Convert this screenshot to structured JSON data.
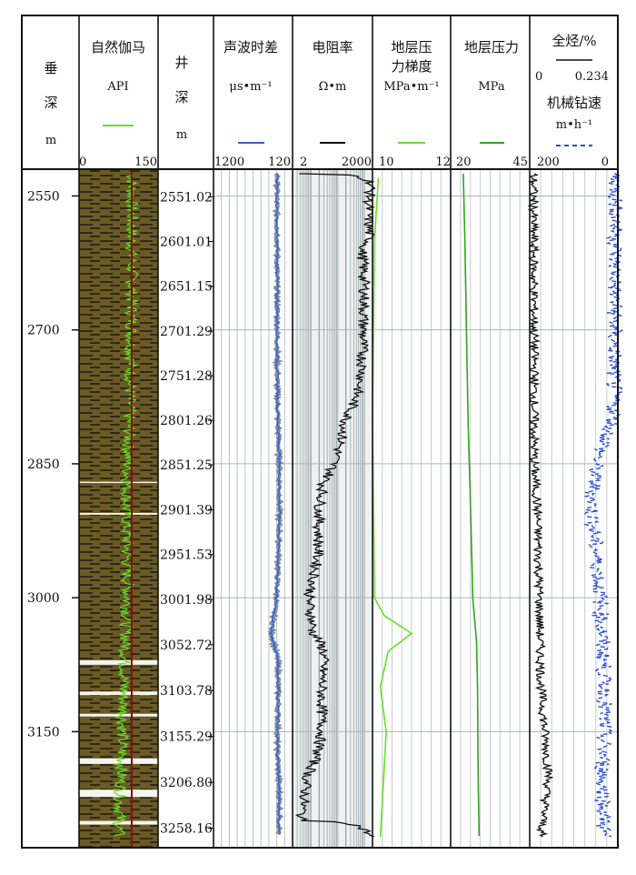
{
  "chart_data": {
    "type": "well-log",
    "tracks": [
      {
        "id": "vdepth",
        "title_lines": [
          "垂",
          "深"
        ],
        "unit": "m"
      },
      {
        "id": "gr",
        "title": "自然伽马",
        "unit": "API",
        "scale": [
          "0",
          "150"
        ],
        "range": [
          0,
          150
        ],
        "color": "#66e02a"
      },
      {
        "id": "mdepth",
        "title_lines": [
          "井",
          "深"
        ],
        "unit": "m"
      },
      {
        "id": "ac",
        "title": "声波时差",
        "unit": "μs•m⁻¹",
        "scale": [
          "1200",
          "120"
        ],
        "range": [
          1200,
          120
        ],
        "color": "#3b5bd6"
      },
      {
        "id": "rt",
        "title": "电阻率",
        "unit": "Ω•m",
        "scale": [
          "2",
          "2000"
        ],
        "range": [
          2,
          2000
        ],
        "log": true,
        "color": "#111111"
      },
      {
        "id": "pg",
        "title_lines": [
          "地层压",
          "力梯度"
        ],
        "unit": "MPa•m⁻¹",
        "scale": [
          "10",
          "12"
        ],
        "range": [
          10,
          12
        ],
        "color": "#66e02a"
      },
      {
        "id": "pf",
        "title": "地层压力",
        "unit": "MPa",
        "scale": [
          "20",
          "45"
        ],
        "range": [
          20,
          45
        ],
        "color": "#2fa31c"
      },
      {
        "id": "tg",
        "title": "全烃/%",
        "scale_inline": [
          "0",
          "0.234"
        ],
        "title2": "机械钻速",
        "unit2": "m•h⁻¹",
        "scale": [
          "200",
          "0"
        ],
        "color": "#111111",
        "color2": "#2a4fd8"
      }
    ],
    "depth_range": [
      2520,
      3280
    ],
    "vertical_depth_ticks": [
      2550,
      2700,
      2850,
      3000,
      3150
    ],
    "measured_depth_labels": [
      "2551.02",
      "2601.01",
      "2651.15",
      "2701.29",
      "2751.28",
      "2801.26",
      "2851.25",
      "2901.39",
      "2951.53",
      "3001.98",
      "3052.72",
      "3103.78",
      "3155.29",
      "3206.80",
      "3258.16"
    ],
    "series": {
      "ac_values": [
        [
          2525,
          330
        ],
        [
          2560,
          335
        ],
        [
          2600,
          330
        ],
        [
          2650,
          332
        ],
        [
          2700,
          328
        ],
        [
          2750,
          330
        ],
        [
          2800,
          320
        ],
        [
          2850,
          300
        ],
        [
          2900,
          300
        ],
        [
          2950,
          310
        ],
        [
          3000,
          340
        ],
        [
          3040,
          410
        ],
        [
          3070,
          320
        ],
        [
          3100,
          315
        ],
        [
          3140,
          320
        ],
        [
          3160,
          330
        ],
        [
          3200,
          310
        ],
        [
          3230,
          300
        ],
        [
          3265,
          305
        ]
      ],
      "rt_values": [
        [
          2525,
          2.5
        ],
        [
          2535,
          1800
        ],
        [
          2560,
          1400
        ],
        [
          2600,
          1500
        ],
        [
          2610,
          800
        ],
        [
          2650,
          1000
        ],
        [
          2700,
          900
        ],
        [
          2750,
          800
        ],
        [
          2780,
          400
        ],
        [
          2800,
          200
        ],
        [
          2840,
          90
        ],
        [
          2870,
          30
        ],
        [
          2900,
          20
        ],
        [
          2950,
          18
        ],
        [
          3000,
          8
        ],
        [
          3040,
          12
        ],
        [
          3060,
          30
        ],
        [
          3100,
          25
        ],
        [
          3150,
          25
        ],
        [
          3200,
          7
        ],
        [
          3250,
          4
        ],
        [
          3268,
          1800
        ]
      ],
      "pg_values": [
        [
          2530,
          10.15
        ],
        [
          2600,
          10.05
        ],
        [
          2800,
          10.0
        ],
        [
          3000,
          10.05
        ],
        [
          3020,
          10.3
        ],
        [
          3040,
          11.0
        ],
        [
          3060,
          10.4
        ],
        [
          3100,
          10.2
        ],
        [
          3150,
          10.35
        ],
        [
          3190,
          10.3
        ],
        [
          3268,
          10.2
        ]
      ],
      "pf_values": [
        [
          2525,
          24.0
        ],
        [
          2600,
          24.5
        ],
        [
          2700,
          25.0
        ],
        [
          2800,
          25.5
        ],
        [
          2900,
          26.3
        ],
        [
          3000,
          27.0
        ],
        [
          3050,
          28.2
        ],
        [
          3100,
          28.5
        ],
        [
          3200,
          28.7
        ],
        [
          3268,
          29.0
        ]
      ],
      "gr_values": [
        [
          2525,
          100
        ],
        [
          2600,
          100
        ],
        [
          2700,
          100
        ],
        [
          2800,
          95
        ],
        [
          2900,
          90
        ],
        [
          3000,
          92
        ],
        [
          3100,
          85
        ],
        [
          3200,
          80
        ],
        [
          3268,
          75
        ]
      ],
      "tg_values": [
        [
          2525,
          0.01
        ],
        [
          2600,
          0.01
        ],
        [
          2700,
          0.012
        ],
        [
          2850,
          0.012
        ],
        [
          2900,
          0.02
        ],
        [
          3000,
          0.025
        ],
        [
          3100,
          0.03
        ],
        [
          3200,
          0.05
        ],
        [
          3268,
          0.03
        ]
      ],
      "rop_values": [
        [
          2525,
          5
        ],
        [
          2600,
          5
        ],
        [
          2700,
          8
        ],
        [
          2800,
          10
        ],
        [
          2850,
          50
        ],
        [
          2900,
          60
        ],
        [
          3000,
          40
        ],
        [
          3100,
          30
        ],
        [
          3200,
          35
        ],
        [
          3268,
          30
        ]
      ]
    }
  }
}
